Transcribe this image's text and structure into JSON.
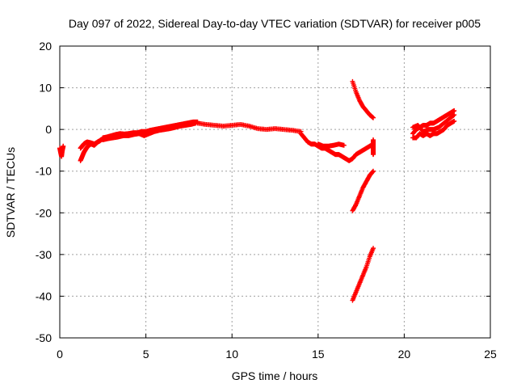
{
  "chart_data": {
    "type": "scatter",
    "title": "Day 097 of 2022, Sidereal Day-to-day VTEC variation (SDTVAR) for receiver p005",
    "xlabel": "GPS time / hours",
    "ylabel": "SDTVAR / TECUs",
    "xlim": [
      0,
      25
    ],
    "ylim": [
      -50,
      20
    ],
    "xticks": [
      "0",
      "5",
      "10",
      "15",
      "20",
      "25"
    ],
    "yticks": [
      "20",
      "10",
      "0",
      "-10",
      "-20",
      "-30",
      "-40",
      "-50"
    ],
    "grid": true,
    "marker": "+",
    "color": "#ff0000",
    "series": [
      {
        "name": "SDTVAR",
        "segments": [
          {
            "x": [
              0.0,
              0.05,
              0.1,
              0.15,
              0.2
            ],
            "y": [
              -4.5,
              -5.5,
              -6.5,
              -5.0,
              -4.0
            ]
          },
          {
            "x": [
              1.2,
              1.3,
              1.4,
              1.5,
              1.6,
              1.7,
              1.8,
              1.9,
              2.0,
              2.1,
              2.2,
              2.3,
              2.4,
              2.5
            ],
            "y": [
              -7.5,
              -6.5,
              -5.5,
              -4.8,
              -4.2,
              -3.8,
              -3.5,
              -3.6,
              -3.8,
              -3.4,
              -3.0,
              -2.8,
              -2.5,
              -2.2
            ]
          },
          {
            "x": [
              1.2,
              1.3,
              1.4,
              1.5,
              1.6,
              1.8,
              2.0,
              2.2,
              2.4
            ],
            "y": [
              -4.5,
              -4.0,
              -3.5,
              -3.2,
              -3.0,
              -3.2,
              -3.5,
              -3.0,
              -2.5
            ]
          },
          {
            "x": [
              2.5,
              2.75,
              3.0,
              3.25,
              3.5,
              3.75,
              4.0,
              4.25,
              4.5,
              4.75,
              5.0,
              5.25,
              5.5,
              5.75,
              6.0,
              6.25,
              6.5,
              6.75,
              7.0,
              7.25,
              7.5,
              7.75,
              8.0
            ],
            "y": [
              -2.0,
              -1.8,
              -1.5,
              -1.2,
              -1.0,
              -1.1,
              -1.0,
              -0.8,
              -0.8,
              -0.5,
              -0.5,
              -0.2,
              0.0,
              0.2,
              0.4,
              0.6,
              0.8,
              1.0,
              1.2,
              1.4,
              1.6,
              1.8,
              1.8
            ]
          },
          {
            "x": [
              2.5,
              2.8,
              3.1,
              3.4,
              3.7,
              4.0,
              4.3,
              4.6,
              4.9,
              5.2,
              5.5,
              5.8,
              6.1,
              6.4,
              6.7,
              7.0,
              7.3,
              7.6,
              7.9
            ],
            "y": [
              -2.5,
              -2.2,
              -2.0,
              -1.8,
              -1.5,
              -1.5,
              -1.2,
              -1.0,
              -1.5,
              -1.0,
              -0.5,
              -0.2,
              0.0,
              0.2,
              0.5,
              0.8,
              1.0,
              1.2,
              1.5
            ]
          },
          {
            "x": [
              8.0,
              8.5,
              9.0,
              9.5,
              10.0,
              10.5,
              11.0,
              11.5,
              12.0,
              12.5,
              13.0,
              13.5,
              14.0
            ],
            "y": [
              1.5,
              1.2,
              1.0,
              0.8,
              1.0,
              1.2,
              0.8,
              0.2,
              0.0,
              0.2,
              0.0,
              -0.2,
              -0.5
            ]
          },
          {
            "x": [
              14.0,
              14.2,
              14.4,
              14.6,
              14.8,
              15.0,
              15.2,
              15.4,
              15.6,
              15.8,
              16.0,
              16.2,
              16.4,
              16.6,
              16.8,
              17.0,
              17.2,
              17.4,
              17.6,
              17.8,
              18.0,
              18.2
            ],
            "y": [
              -1.0,
              -2.0,
              -3.0,
              -3.5,
              -3.5,
              -4.0,
              -4.5,
              -4.5,
              -5.0,
              -5.5,
              -6.0,
              -6.0,
              -6.5,
              -7.0,
              -7.5,
              -7.0,
              -6.0,
              -5.5,
              -5.0,
              -4.5,
              -4.0,
              -3.5
            ]
          },
          {
            "x": [
              15.0,
              15.3,
              15.6,
              15.9,
              16.2,
              16.5
            ],
            "y": [
              -3.5,
              -4.0,
              -4.0,
              -3.8,
              -3.5,
              -3.8
            ]
          },
          {
            "x": [
              18.2,
              18.2,
              18.2,
              18.2,
              18.2
            ],
            "y": [
              -2.5,
              -3.5,
              -4.5,
              -5.5,
              -6.0
            ]
          },
          {
            "x": [
              17.0,
              17.2,
              17.4,
              17.6,
              17.8,
              18.0,
              18.2
            ],
            "y": [
              11.5,
              9.0,
              7.0,
              5.5,
              4.5,
              3.5,
              2.8
            ]
          },
          {
            "x": [
              17.0,
              17.2,
              17.4,
              17.6,
              17.8,
              18.0,
              18.2
            ],
            "y": [
              -19.5,
              -18.0,
              -16.0,
              -14.0,
              -12.5,
              -11.0,
              -10.0
            ]
          },
          {
            "x": [
              17.0,
              17.2,
              17.4,
              17.6,
              17.8,
              18.0,
              18.2
            ],
            "y": [
              -41.0,
              -39.0,
              -37.0,
              -35.0,
              -33.0,
              -30.5,
              -28.5
            ]
          },
          {
            "x": [
              20.5,
              20.7,
              20.9,
              21.1,
              21.3,
              21.5,
              21.7,
              21.9,
              22.1,
              22.3,
              22.5,
              22.7,
              22.9
            ],
            "y": [
              -1.0,
              0.0,
              0.5,
              1.0,
              1.0,
              1.5,
              1.5,
              2.0,
              2.5,
              3.0,
              3.5,
              4.0,
              4.5
            ]
          },
          {
            "x": [
              20.5,
              20.7,
              20.9,
              21.1,
              21.3,
              21.5,
              21.7,
              21.9,
              22.1,
              22.3,
              22.5,
              22.7,
              22.9
            ],
            "y": [
              -2.0,
              -2.0,
              -1.0,
              -1.5,
              -1.0,
              -1.5,
              -1.0,
              -1.0,
              -0.5,
              0.0,
              1.0,
              1.5,
              2.0
            ]
          },
          {
            "x": [
              20.5,
              20.8,
              21.1,
              21.4,
              21.7,
              22.0,
              22.3,
              22.6,
              22.9
            ],
            "y": [
              0.5,
              1.0,
              -0.5,
              0.0,
              0.0,
              0.5,
              1.5,
              2.5,
              3.5
            ]
          }
        ]
      }
    ]
  }
}
